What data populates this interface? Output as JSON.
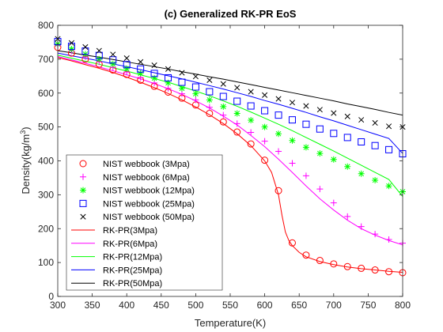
{
  "chart_data": {
    "type": "line",
    "title": "(c) Generalized RK-PR EoS",
    "xlabel": "Temperature(K)",
    "ylabel": "Density(kg/m",
    "ylabel_sup": "3",
    "ylabel_tail": ")",
    "xlim": [
      300,
      800
    ],
    "ylim": [
      0,
      800
    ],
    "x_ticks": [
      300,
      350,
      400,
      450,
      500,
      550,
      600,
      650,
      700,
      750,
      800
    ],
    "y_ticks": [
      0,
      100,
      200,
      300,
      400,
      500,
      600,
      700,
      800
    ],
    "grid": false,
    "legend_position": "lower-left",
    "colors": {
      "3": "#ff0000",
      "6": "#ff00ff",
      "12": "#00ff00",
      "25": "#0000ff",
      "50": "#000000"
    },
    "markers": [
      {
        "name": "NIST webbook (3Mpa)",
        "marker": "circle",
        "color": "#ff0000",
        "x": [
          300,
          320,
          340,
          360,
          380,
          400,
          420,
          440,
          460,
          480,
          500,
          520,
          540,
          560,
          580,
          600,
          620,
          640,
          660,
          680,
          700,
          720,
          740,
          760,
          780,
          800
        ],
        "y": [
          735,
          718,
          700,
          685,
          668,
          655,
          638,
          620,
          603,
          585,
          565,
          540,
          515,
          485,
          450,
          402,
          312,
          158,
          122,
          106,
          96,
          88,
          83,
          78,
          73,
          70
        ]
      },
      {
        "name": "NIST webbook (6Mpa)",
        "marker": "plus",
        "color": "#ff00ff",
        "x": [
          300,
          320,
          340,
          360,
          380,
          400,
          420,
          440,
          460,
          480,
          500,
          520,
          540,
          560,
          580,
          600,
          620,
          640,
          660,
          680,
          700,
          720,
          740,
          760,
          780,
          800
        ],
        "y": [
          740,
          724,
          707,
          692,
          676,
          662,
          646,
          630,
          614,
          598,
          580,
          558,
          535,
          510,
          484,
          458,
          428,
          393,
          356,
          317,
          276,
          236,
          206,
          184,
          168,
          157
        ]
      },
      {
        "name": "NIST webbook (12Mpa)",
        "marker": "asterisk",
        "color": "#00ff00",
        "x": [
          300,
          320,
          340,
          360,
          380,
          400,
          420,
          440,
          460,
          480,
          500,
          520,
          540,
          560,
          580,
          600,
          620,
          640,
          660,
          680,
          700,
          720,
          740,
          760,
          780,
          800
        ],
        "y": [
          745,
          730,
          715,
          700,
          686,
          672,
          658,
          644,
          630,
          614,
          598,
          580,
          560,
          540,
          520,
          500,
          480,
          460,
          440,
          422,
          404,
          383,
          362,
          343,
          326,
          309
        ]
      },
      {
        "name": "NIST webbook (25Mpa)",
        "marker": "square",
        "color": "#0000ff",
        "x": [
          300,
          320,
          340,
          360,
          380,
          400,
          420,
          440,
          460,
          480,
          500,
          520,
          540,
          560,
          580,
          600,
          620,
          640,
          660,
          680,
          700,
          720,
          740,
          760,
          780,
          800
        ],
        "y": [
          752,
          738,
          724,
          711,
          698,
          684,
          671,
          658,
          645,
          632,
          618,
          604,
          590,
          576,
          562,
          548,
          535,
          521,
          508,
          494,
          481,
          469,
          456,
          445,
          433,
          421
        ]
      },
      {
        "name": "NIST webbook (50Mpa)",
        "marker": "x",
        "color": "#000000",
        "x": [
          300,
          320,
          340,
          360,
          380,
          400,
          420,
          440,
          460,
          480,
          500,
          520,
          540,
          560,
          580,
          600,
          620,
          640,
          660,
          680,
          700,
          720,
          740,
          760,
          780,
          800
        ],
        "y": [
          760,
          748,
          736,
          725,
          714,
          703,
          692,
          682,
          671,
          660,
          649,
          638,
          627,
          616,
          604,
          594,
          583,
          572,
          562,
          551,
          541,
          531,
          521,
          512,
          502,
          500
        ]
      }
    ],
    "lines": [
      {
        "name": "RK-PR(3Mpa)",
        "color": "#ff0000",
        "x": [
          300,
          320,
          340,
          360,
          380,
          400,
          420,
          440,
          460,
          480,
          500,
          520,
          540,
          560,
          580,
          600,
          610,
          620,
          625,
          630,
          635,
          640,
          650,
          660,
          680,
          700,
          720,
          740,
          760,
          780,
          800
        ],
        "y": [
          705,
          695,
          684,
          673,
          661,
          647,
          632,
          616,
          599,
          580,
          559,
          536,
          510,
          480,
          445,
          400,
          366,
          300,
          240,
          190,
          165,
          150,
          130,
          117,
          103,
          94,
          87,
          82,
          78,
          74,
          71
        ]
      },
      {
        "name": "RK-PR(6Mpa)",
        "color": "#ff00ff",
        "x": [
          300,
          320,
          340,
          360,
          380,
          400,
          420,
          440,
          460,
          480,
          500,
          520,
          540,
          560,
          580,
          600,
          620,
          640,
          660,
          680,
          700,
          720,
          740,
          760,
          780,
          800
        ],
        "y": [
          708,
          698,
          688,
          677,
          666,
          654,
          642,
          628,
          613,
          596,
          577,
          556,
          532,
          506,
          475,
          442,
          405,
          366,
          326,
          288,
          255,
          225,
          200,
          181,
          165,
          152
        ]
      },
      {
        "name": "RK-PR(12Mpa)",
        "color": "#00ff00",
        "x": [
          300,
          320,
          340,
          360,
          380,
          400,
          420,
          440,
          460,
          480,
          500,
          520,
          540,
          560,
          580,
          600,
          620,
          640,
          660,
          680,
          700,
          720,
          740,
          760,
          780,
          800
        ],
        "y": [
          712,
          703,
          694,
          685,
          675,
          665,
          654,
          643,
          632,
          619,
          606,
          592,
          577,
          561,
          544,
          526,
          508,
          489,
          469,
          449,
          429,
          408,
          387,
          366,
          345,
          295
        ]
      },
      {
        "name": "RK-PR(25Mpa)",
        "color": "#0000ff",
        "x": [
          300,
          320,
          340,
          360,
          380,
          400,
          420,
          440,
          460,
          480,
          500,
          520,
          540,
          560,
          580,
          600,
          620,
          640,
          660,
          680,
          700,
          720,
          740,
          760,
          780,
          800
        ],
        "y": [
          718,
          710,
          703,
          695,
          686,
          678,
          669,
          660,
          651,
          642,
          632,
          622,
          612,
          601,
          590,
          578,
          567,
          555,
          543,
          530,
          518,
          505,
          492,
          479,
          466,
          422
        ]
      },
      {
        "name": "RK-PR(50Mpa)",
        "color": "#000000",
        "x": [
          300,
          320,
          340,
          360,
          380,
          400,
          420,
          440,
          460,
          480,
          500,
          520,
          540,
          560,
          580,
          600,
          620,
          640,
          660,
          680,
          700,
          720,
          740,
          760,
          780,
          800
        ],
        "y": [
          725,
          719,
          712,
          706,
          699,
          692,
          685,
          678,
          671,
          663,
          656,
          648,
          641,
          633,
          625,
          617,
          609,
          601,
          593,
          585,
          577,
          568,
          560,
          552,
          543,
          535
        ]
      }
    ]
  }
}
